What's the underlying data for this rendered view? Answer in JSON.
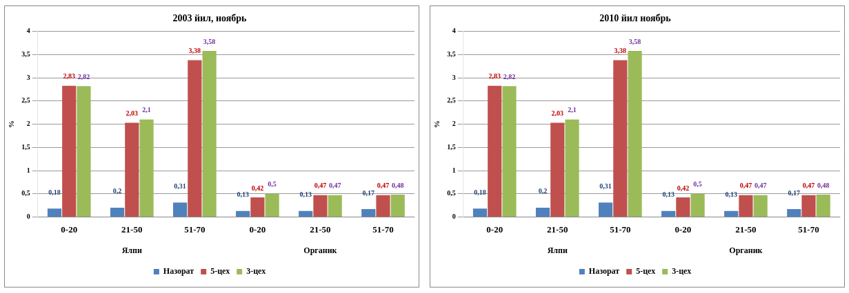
{
  "chart_data": [
    {
      "type": "bar",
      "title": "2003 йил, ноябрь",
      "ylabel": "%",
      "categories": [
        "0-20",
        "21-50",
        "51-70",
        "0-20",
        "21-50",
        "51-70"
      ],
      "annotations": [
        "Ялпи",
        "Органик"
      ],
      "series": [
        {
          "name": "Назорат",
          "color": "#4f81bd",
          "values": [
            0.18,
            0.2,
            0.31,
            0.13,
            0.13,
            0.17
          ],
          "value_labels": [
            "0,18",
            "0,2",
            "0,31",
            "0,13",
            "0,13",
            "0,17"
          ]
        },
        {
          "name": "5-цех",
          "color": "#c0504d",
          "values": [
            2.83,
            2.03,
            3.38,
            0.42,
            0.47,
            0.47
          ],
          "value_labels": [
            "2,83",
            "2,03",
            "3,38",
            "0,42",
            "0,47",
            "0,47"
          ]
        },
        {
          "name": "3-цех",
          "color": "#9bbb59",
          "values": [
            2.82,
            2.1,
            3.58,
            0.5,
            0.47,
            0.48
          ],
          "value_labels": [
            "2,82",
            "2,1",
            "3,58",
            "0,5",
            "0,47",
            "0,48"
          ]
        }
      ],
      "ylim": [
        0,
        4
      ],
      "yticks": [
        0,
        {
          "value": 0.5,
          "label": "0,5"
        },
        1,
        {
          "value": 1.5,
          "label": "1,5"
        },
        2,
        {
          "value": 2.5,
          "label": "2,5"
        },
        3,
        {
          "value": 3.5,
          "label": "3,5"
        },
        4
      ],
      "grid": "y",
      "legend": "bottom"
    },
    {
      "type": "bar",
      "title": "2010 йил ноябрь",
      "ylabel": "%",
      "categories": [
        "0-20",
        "21-50",
        "51-70",
        "0-20",
        "21-50",
        "51-70"
      ],
      "annotations": [
        "Ялпи",
        "Органик"
      ],
      "series": [
        {
          "name": "Назорат",
          "color": "#4f81bd",
          "values": [
            0.18,
            0.2,
            0.31,
            0.13,
            0.13,
            0.17
          ],
          "value_labels": [
            "0,18",
            "0,2",
            "0,31",
            "0,13",
            "0,13",
            "0,17"
          ]
        },
        {
          "name": "5-цех",
          "color": "#c0504d",
          "values": [
            2.83,
            2.03,
            3.38,
            0.42,
            0.47,
            0.47
          ],
          "value_labels": [
            "2,83",
            "2,03",
            "3,38",
            "0,42",
            "0,47",
            "0,47"
          ]
        },
        {
          "name": "3-цех",
          "color": "#9bbb59",
          "values": [
            2.82,
            2.1,
            3.58,
            0.5,
            0.47,
            0.48
          ],
          "value_labels": [
            "2,82",
            "2,1",
            "3,58",
            "0,5",
            "0,47",
            "0,48"
          ]
        }
      ],
      "ylim": [
        0,
        4
      ],
      "yticks": [
        0,
        {
          "value": 0.5,
          "label": "0,5"
        },
        1,
        {
          "value": 1.5,
          "label": "1,5"
        },
        2,
        {
          "value": 2.5,
          "label": "2,5"
        },
        3,
        {
          "value": 3.5,
          "label": "3,5"
        },
        4
      ],
      "grid": "y",
      "legend": "bottom"
    }
  ]
}
